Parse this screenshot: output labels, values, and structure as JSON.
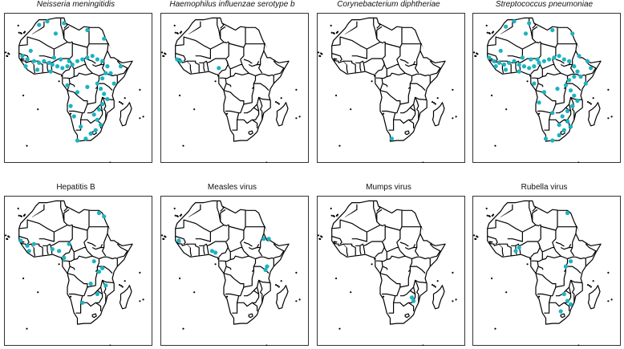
{
  "marker_color": "#1bb3c0",
  "panels": [
    {
      "title": "Neisseria meningitidis",
      "italic": true,
      "points": [
        [
          -15,
          15
        ],
        [
          -12,
          13
        ],
        [
          -8,
          12
        ],
        [
          -5,
          11
        ],
        [
          -2,
          12
        ],
        [
          1,
          11
        ],
        [
          3,
          10
        ],
        [
          6,
          9
        ],
        [
          9,
          8
        ],
        [
          12,
          9
        ],
        [
          15,
          10
        ],
        [
          18,
          12
        ],
        [
          21,
          13
        ],
        [
          24,
          14
        ],
        [
          27,
          15
        ],
        [
          30,
          13
        ],
        [
          33,
          12
        ],
        [
          36,
          9
        ],
        [
          35,
          5
        ],
        [
          33,
          2
        ],
        [
          30,
          -1
        ],
        [
          32,
          -4
        ],
        [
          34,
          -7
        ],
        [
          36,
          -10
        ],
        [
          33,
          -13
        ],
        [
          31,
          -16
        ],
        [
          28,
          -19
        ],
        [
          30,
          -22
        ],
        [
          32,
          -25
        ],
        [
          29,
          -28
        ],
        [
          26,
          -30
        ],
        [
          23,
          -33
        ],
        [
          18,
          -34
        ],
        [
          20,
          -26
        ],
        [
          16,
          -20
        ],
        [
          14,
          -14
        ],
        [
          18,
          -6
        ],
        [
          24,
          -3
        ],
        [
          12,
          -2
        ],
        [
          38,
          5
        ],
        [
          40,
          -1
        ],
        [
          44,
          9
        ],
        [
          34,
          25
        ],
        [
          24,
          30
        ],
        [
          10,
          34
        ],
        [
          0,
          35
        ],
        [
          -5,
          33
        ],
        [
          5,
          28
        ],
        [
          -10,
          18
        ],
        [
          4,
          14
        ],
        [
          8,
          13
        ],
        [
          13,
          12
        ],
        [
          2,
          6
        ],
        [
          -6,
          7
        ],
        [
          -13,
          9
        ]
      ]
    },
    {
      "title": "Haemophilus influenzae serotype b",
      "italic": true,
      "points": [
        [
          -16,
          13
        ],
        [
          -14,
          12
        ],
        [
          9,
          8
        ]
      ]
    },
    {
      "title": "Corynebacterium diphtheriae",
      "italic": true,
      "points": [
        [
          19,
          -33
        ]
      ]
    },
    {
      "title": "Streptococcus pneumoniae",
      "italic": true,
      "points": [
        [
          -16,
          14
        ],
        [
          -13,
          12
        ],
        [
          -10,
          11
        ],
        [
          -7,
          10
        ],
        [
          -4,
          11
        ],
        [
          -1,
          12
        ],
        [
          2,
          10
        ],
        [
          5,
          9
        ],
        [
          8,
          8
        ],
        [
          11,
          9
        ],
        [
          14,
          11
        ],
        [
          17,
          12
        ],
        [
          20,
          13
        ],
        [
          23,
          14
        ],
        [
          26,
          15
        ],
        [
          29,
          13
        ],
        [
          32,
          12
        ],
        [
          35,
          9
        ],
        [
          37,
          6
        ],
        [
          35,
          3
        ],
        [
          32,
          1
        ],
        [
          30,
          -2
        ],
        [
          33,
          -5
        ],
        [
          35,
          -8
        ],
        [
          37,
          -11
        ],
        [
          34,
          -14
        ],
        [
          31,
          -17
        ],
        [
          28,
          -20
        ],
        [
          31,
          -23
        ],
        [
          33,
          -26
        ],
        [
          29,
          -28
        ],
        [
          26,
          -31
        ],
        [
          22,
          -34
        ],
        [
          18,
          -33
        ],
        [
          26,
          -25
        ],
        [
          22,
          -18
        ],
        [
          14,
          -12
        ],
        [
          17,
          -6
        ],
        [
          25,
          -4
        ],
        [
          11,
          -1
        ],
        [
          39,
          3
        ],
        [
          42,
          -1
        ],
        [
          45,
          8
        ],
        [
          34,
          28
        ],
        [
          22,
          30
        ],
        [
          8,
          34
        ],
        [
          -1,
          35
        ],
        [
          -6,
          32
        ],
        [
          6,
          28
        ],
        [
          -9,
          18
        ],
        [
          4,
          14
        ],
        [
          9,
          13
        ],
        [
          13,
          13
        ],
        [
          2,
          6
        ],
        [
          -6,
          7
        ],
        [
          -12,
          9
        ],
        [
          38,
          15
        ],
        [
          43,
          12
        ]
      ]
    },
    {
      "title": "Hepatitis B",
      "italic": false,
      "points": [
        [
          31,
          30
        ],
        [
          34,
          28
        ],
        [
          -16,
          14
        ],
        [
          -12,
          11
        ],
        [
          -8,
          12
        ],
        [
          3,
          9
        ],
        [
          7,
          8
        ],
        [
          13,
          12
        ],
        [
          28,
          2
        ],
        [
          33,
          -2
        ],
        [
          31,
          -4
        ],
        [
          26,
          -11
        ],
        [
          30,
          -17
        ],
        [
          35,
          -12
        ],
        [
          21,
          -22
        ],
        [
          -11,
          8
        ],
        [
          10,
          4
        ]
      ]
    },
    {
      "title": "Measles virus",
      "italic": false,
      "points": [
        [
          36,
          15
        ],
        [
          39,
          15
        ],
        [
          38,
          -1
        ],
        [
          37,
          -3
        ],
        [
          5,
          8
        ],
        [
          7,
          7
        ],
        [
          -15,
          14
        ]
      ]
    },
    {
      "title": "Mumps virus",
      "italic": false,
      "points": [
        [
          31,
          -19
        ],
        [
          32,
          -21
        ]
      ]
    },
    {
      "title": "Rubella virus",
      "italic": false,
      "points": [
        [
          31,
          30
        ],
        [
          2,
          10
        ],
        [
          0,
          8
        ],
        [
          33,
          2
        ],
        [
          30,
          -1
        ],
        [
          29,
          -17
        ],
        [
          31,
          -21
        ],
        [
          33,
          -23
        ],
        [
          27,
          -27
        ]
      ]
    }
  ]
}
